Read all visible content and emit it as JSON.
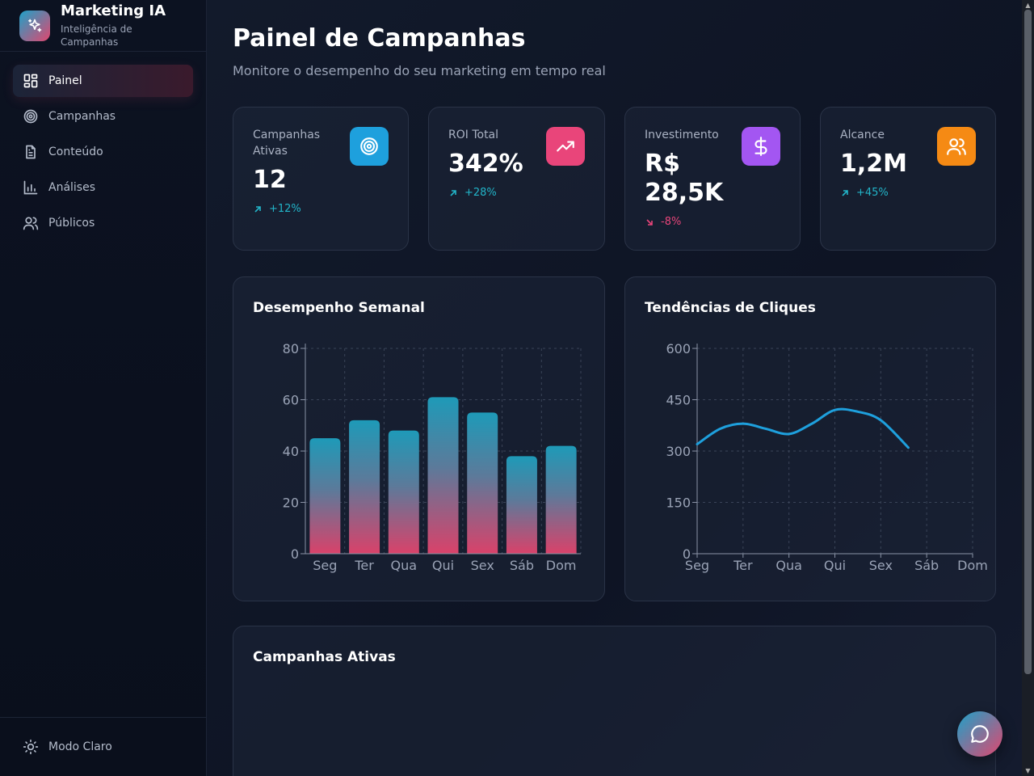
{
  "brand": {
    "title": "Marketing IA",
    "subtitle": "Inteligência de Campanhas",
    "logo_icon": "sparkles-icon"
  },
  "nav": {
    "items": [
      {
        "label": "Painel",
        "icon": "dashboard-icon",
        "active": true
      },
      {
        "label": "Campanhas",
        "icon": "target-icon",
        "active": false
      },
      {
        "label": "Conteúdo",
        "icon": "document-icon",
        "active": false
      },
      {
        "label": "Análises",
        "icon": "bar-chart-icon",
        "active": false
      },
      {
        "label": "Públicos",
        "icon": "users-icon",
        "active": false
      }
    ]
  },
  "footer": {
    "theme_toggle": "Modo Claro",
    "icon": "sun-icon"
  },
  "header": {
    "title": "Painel de Campanhas",
    "subtitle": "Monitore o desempenho do seu marketing em tempo real"
  },
  "stats": [
    {
      "label": "Campanhas Ativas",
      "value": "12",
      "change": "+12%",
      "trend": "up",
      "icon": "target-icon",
      "color": "#1ea0dd"
    },
    {
      "label": "ROI Total",
      "value": "342%",
      "change": "+28%",
      "trend": "up",
      "icon": "trending-up-icon",
      "color": "#e9457a"
    },
    {
      "label": "Investimento",
      "value": "R$ 28,5K",
      "change": "-8%",
      "trend": "down",
      "icon": "dollar-icon",
      "color": "#a356f2"
    },
    {
      "label": "Alcance",
      "value": "1,2M",
      "change": "+45%",
      "trend": "up",
      "icon": "users-icon",
      "color": "#f58a14"
    }
  ],
  "colors": {
    "positive": "#22b5c9",
    "negative": "#e9457a"
  },
  "chart_data": [
    {
      "type": "bar",
      "title": "Desempenho Semanal",
      "categories": [
        "Seg",
        "Ter",
        "Qua",
        "Qui",
        "Sex",
        "Sáb",
        "Dom"
      ],
      "values": [
        45,
        52,
        48,
        61,
        55,
        38,
        42
      ],
      "ylim": [
        0,
        80
      ],
      "yticks": [
        0,
        20,
        40,
        60,
        80
      ],
      "grid": true
    },
    {
      "type": "line",
      "title": "Tendências de Cliques",
      "categories": [
        "Seg",
        "Ter",
        "Qua",
        "Qui",
        "Sex",
        "Sáb",
        "Dom"
      ],
      "points": [
        [
          0,
          320
        ],
        [
          0.5,
          365
        ],
        [
          1,
          380
        ],
        [
          1.5,
          365
        ],
        [
          2,
          350
        ],
        [
          2.5,
          380
        ],
        [
          3,
          420
        ],
        [
          3.5,
          415
        ],
        [
          4,
          390
        ],
        [
          4.6,
          310
        ]
      ],
      "ylim": [
        0,
        600
      ],
      "yticks": [
        0,
        150,
        300,
        450,
        600
      ],
      "grid": true
    }
  ],
  "table": {
    "title": "Campanhas Ativas"
  },
  "fab": {
    "icon": "chat-icon"
  }
}
